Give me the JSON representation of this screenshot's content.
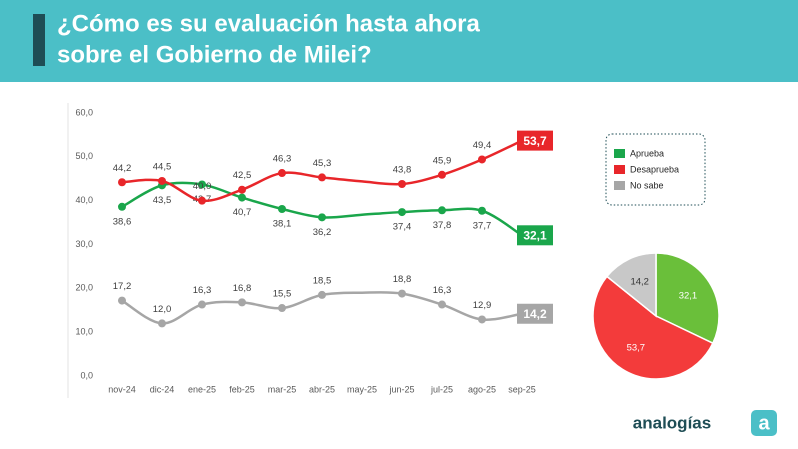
{
  "header": {
    "title": [
      "¿Cómo es su evaluación hasta ahora",
      "sobre el Gobierno de Milei?"
    ]
  },
  "logo": {
    "name": "analogías",
    "icon": "a"
  },
  "chart_data": [
    {
      "type": "line",
      "categories": [
        "nov-24",
        "dic-24",
        "ene-25",
        "feb-25",
        "mar-25",
        "abr-25",
        "may-25",
        "jun-25",
        "jul-25",
        "ago-25",
        "sep-25"
      ],
      "ylim": [
        0,
        60
      ],
      "yticks": [
        {
          "value": 0,
          "label": "0,0"
        },
        {
          "value": 10,
          "label": "10,0"
        },
        {
          "value": 20,
          "label": "20,0"
        },
        {
          "value": 30,
          "label": "30,0"
        },
        {
          "value": 40,
          "label": "40,0"
        },
        {
          "value": 50,
          "label": "50,0"
        },
        {
          "value": 60,
          "label": "60,0"
        }
      ],
      "series": [
        {
          "name": "Aprueba",
          "color": "#1aa64b",
          "label_side": "below",
          "values": [
            38.6,
            43.5,
            43.7,
            40.7,
            38.1,
            36.2,
            36.8,
            37.4,
            37.8,
            37.7,
            32.1
          ],
          "value_labels": [
            "38,6",
            "43,5",
            "43,7",
            "40,7",
            "38,1",
            "36,2",
            null,
            "37,4",
            "37,8",
            "37,7",
            "32,1"
          ]
        },
        {
          "name": "Desaprueba",
          "color": "#e8262a",
          "label_side": "above",
          "values": [
            44.2,
            44.5,
            40.0,
            42.5,
            46.3,
            45.3,
            44.4,
            43.8,
            45.9,
            49.4,
            53.7
          ],
          "value_labels": [
            "44,2",
            "44,5",
            "40,0",
            "42,5",
            "46,3",
            "45,3",
            null,
            "43,8",
            "45,9",
            "49,4",
            "53,7"
          ]
        },
        {
          "name": "No sabe",
          "color": "#a6a6a6",
          "label_side": "above",
          "values": [
            17.2,
            12.0,
            16.3,
            16.8,
            15.5,
            18.5,
            19.0,
            18.8,
            16.3,
            12.9,
            14.2
          ],
          "value_labels": [
            "17,2",
            "12,0",
            "16,3",
            "16,8",
            "15,5",
            "18,5",
            null,
            "18,8",
            "16,3",
            "12,9",
            "14,2"
          ]
        }
      ]
    },
    {
      "type": "pie",
      "values": [
        32.1,
        53.7,
        14.2
      ],
      "value_labels": [
        "32,1",
        "53,7",
        "14,2"
      ],
      "colors": [
        "#6abf3a",
        "#f33b3b",
        "#c8c8c8"
      ]
    }
  ]
}
